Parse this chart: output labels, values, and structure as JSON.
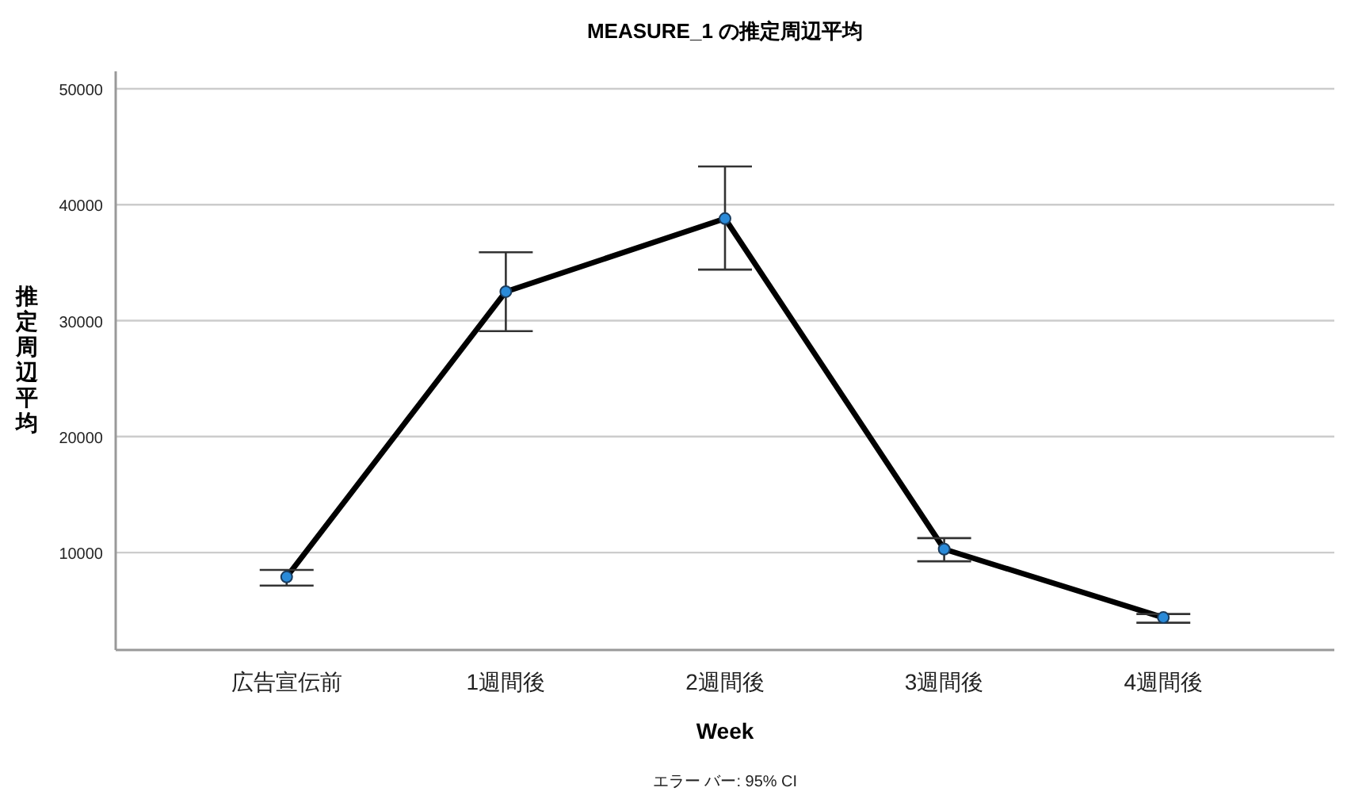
{
  "chart_data": {
    "type": "line",
    "title": "MEASURE_1 の推定周辺平均",
    "xlabel": "Week",
    "ylabel": "推定周辺平均",
    "annotations": [
      "エラー バー: 95% CI"
    ],
    "categories": [
      "広告宣伝前",
      "1週間後",
      "2週間後",
      "3週間後",
      "4週間後"
    ],
    "series": [
      {
        "color": "#000000",
        "values": [
          7900,
          32500,
          38800,
          10300,
          4400
        ],
        "errors": [
          [
            7150,
            8500
          ],
          [
            29100,
            35900
          ],
          [
            34400,
            43300
          ],
          [
            9250,
            11250
          ],
          [
            3950,
            4700
          ]
        ]
      }
    ],
    "ylim": [
      1600,
      51500
    ],
    "yticks": [
      10000,
      20000,
      30000,
      40000,
      50000
    ],
    "grid": "y",
    "marker": "circle",
    "line_style": "solid"
  }
}
